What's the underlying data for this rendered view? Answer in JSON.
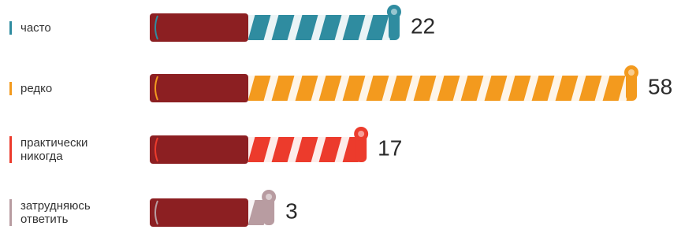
{
  "chart_data": {
    "type": "bar",
    "categories": [
      "часто",
      "редко",
      "практически никогда",
      "затрудняюсь ответить"
    ],
    "values": [
      22,
      58,
      17,
      3
    ],
    "colors": [
      "#2f8ca0",
      "#f39a1e",
      "#ec3b2c",
      "#b89ca1"
    ]
  }
}
